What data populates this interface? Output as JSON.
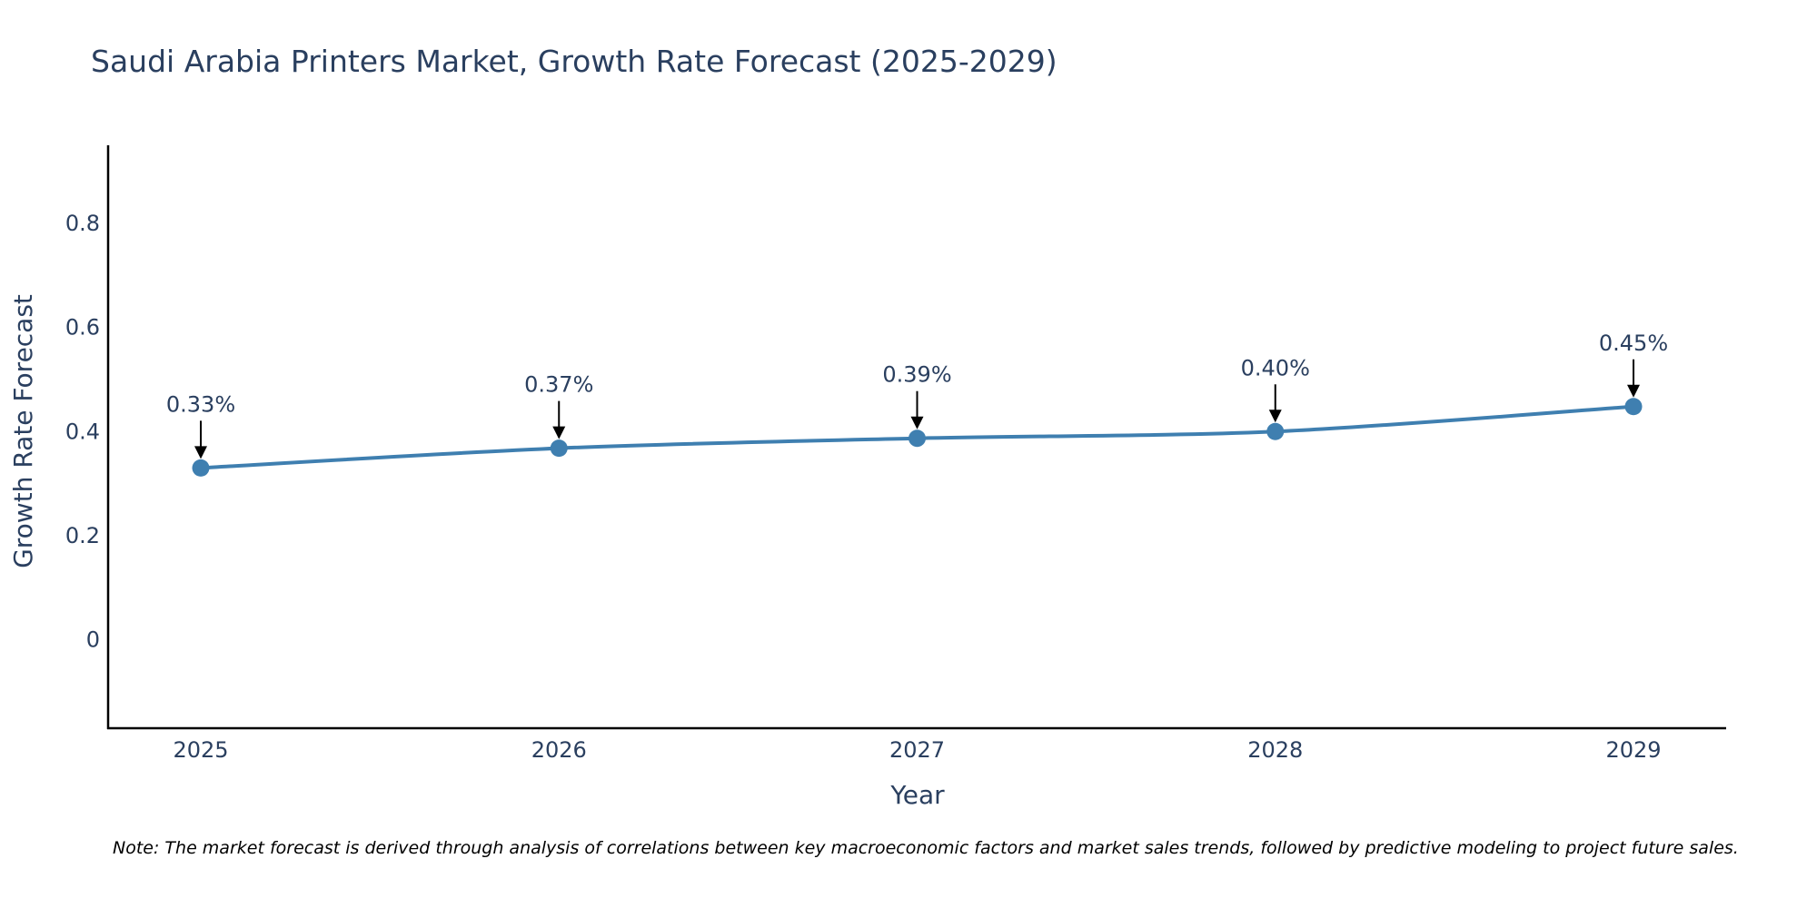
{
  "chart_data": {
    "type": "line",
    "title": "Saudi Arabia Printers Market, Growth Rate Forecast (2025-2029)",
    "xlabel": "Year",
    "ylabel": "Growth Rate Forecast",
    "categories": [
      "2025",
      "2026",
      "2027",
      "2028",
      "2029"
    ],
    "values": [
      0.33,
      0.368,
      0.387,
      0.4,
      0.448
    ],
    "data_labels": [
      "0.33%",
      "0.37%",
      "0.39%",
      "0.40%",
      "0.45%"
    ],
    "y_ticks": [
      0,
      0.2,
      0.4,
      0.6,
      0.8
    ],
    "y_tick_labels": [
      "0",
      "0.2",
      "0.4",
      "0.6",
      "0.8"
    ],
    "ylim": [
      -0.17,
      0.95
    ],
    "grid": false,
    "line_color": "#3f7fb0",
    "note": "Note: The market forecast is derived through analysis of correlations between key macroeconomic factors and market sales trends, followed by predictive modeling to project future sales."
  }
}
